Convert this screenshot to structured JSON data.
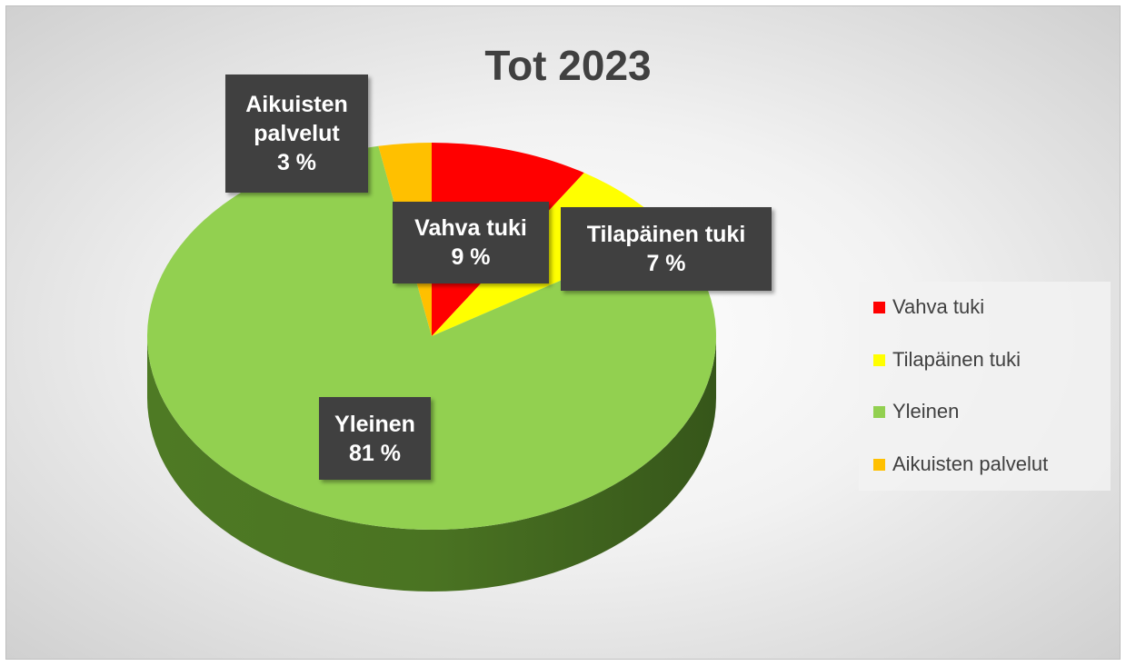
{
  "chart_data": {
    "type": "pie",
    "title": "Tot 2023",
    "categories": [
      "Vahva tuki",
      "Tilapäinen tuki",
      "Yleinen",
      "Aikuisten palvelut"
    ],
    "values": [
      9,
      7,
      81,
      3
    ],
    "value_labels": [
      "9 %",
      "7 %",
      "81 %",
      "3 %"
    ],
    "colors": [
      "#ff0000",
      "#ffff00",
      "#92d050",
      "#ffc000"
    ],
    "legend": "right"
  }
}
